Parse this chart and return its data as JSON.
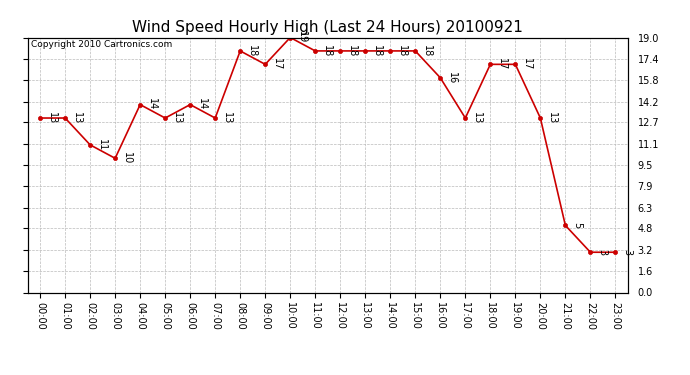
{
  "title": "Wind Speed Hourly High (Last 24 Hours) 20100921",
  "copyright_text": "Copyright 2010 Cartronics.com",
  "hours": [
    "00:00",
    "01:00",
    "02:00",
    "03:00",
    "04:00",
    "05:00",
    "06:00",
    "07:00",
    "08:00",
    "09:00",
    "10:00",
    "11:00",
    "12:00",
    "13:00",
    "14:00",
    "15:00",
    "16:00",
    "17:00",
    "18:00",
    "19:00",
    "20:00",
    "21:00",
    "22:00",
    "23:00"
  ],
  "values": [
    13,
    13,
    11,
    10,
    14,
    13,
    14,
    13,
    18,
    17,
    19,
    18,
    18,
    18,
    18,
    18,
    16,
    13,
    17,
    17,
    13,
    5,
    3,
    3
  ],
  "line_color": "#cc0000",
  "marker": "o",
  "marker_size": 3,
  "marker_color": "#cc0000",
  "ylim": [
    0.0,
    19.0
  ],
  "yticks": [
    0.0,
    1.6,
    3.2,
    4.8,
    6.3,
    7.9,
    9.5,
    11.1,
    12.7,
    14.2,
    15.8,
    17.4,
    19.0
  ],
  "ytick_labels": [
    "0.0",
    "1.6",
    "3.2",
    "4.8",
    "6.3",
    "7.9",
    "9.5",
    "11.1",
    "12.7",
    "14.2",
    "15.8",
    "17.4",
    "19.0"
  ],
  "bg_color": "#ffffff",
  "grid_color": "#bbbbbb",
  "title_fontsize": 11,
  "label_fontsize": 7,
  "annotation_fontsize": 7,
  "copyright_fontsize": 6.5
}
